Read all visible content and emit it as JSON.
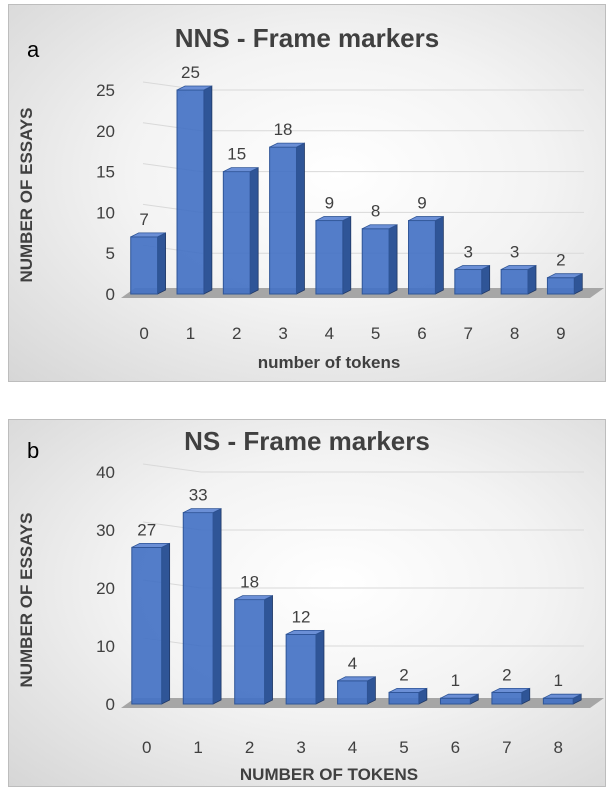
{
  "chart_data": [
    {
      "type": "bar",
      "panel_label": "a",
      "title": "NNS - Frame markers",
      "xlabel": "number of tokens",
      "ylabel": "NUMBER OF ESSAYS",
      "categories": [
        "0",
        "1",
        "2",
        "3",
        "4",
        "5",
        "6",
        "7",
        "8",
        "9"
      ],
      "values": [
        7,
        25,
        15,
        18,
        9,
        8,
        9,
        3,
        3,
        2
      ],
      "ylim": [
        0,
        25
      ],
      "yticks": [
        0,
        5,
        10,
        15,
        20,
        25
      ],
      "grid": true,
      "bar_color": "#4472c4",
      "style": "3d-columns"
    },
    {
      "type": "bar",
      "panel_label": "b",
      "title": "NS - Frame markers",
      "xlabel": "NUMBER OF TOKENS",
      "ylabel": "NUMBER OF ESSAYS",
      "categories": [
        "0",
        "1",
        "2",
        "3",
        "4",
        "5",
        "6",
        "7",
        "8"
      ],
      "values": [
        27,
        33,
        18,
        12,
        4,
        2,
        1,
        2,
        1
      ],
      "ylim": [
        0,
        40
      ],
      "yticks": [
        0,
        10,
        20,
        30,
        40
      ],
      "grid": true,
      "bar_color": "#4472c4",
      "style": "3d-columns"
    }
  ]
}
